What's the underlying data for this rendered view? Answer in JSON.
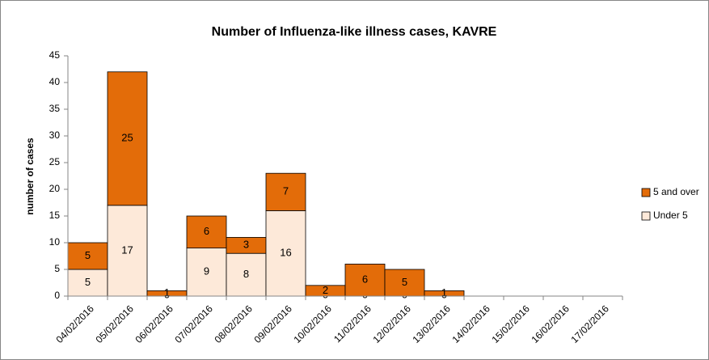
{
  "chart_data": {
    "type": "stacked_bar",
    "title": "Number of Influenza-like illness cases, KAVRE",
    "y_label": "number of cases",
    "categories": [
      "04/02/2016",
      "05/02/2016",
      "06/02/2016",
      "07/02/2016",
      "08/02/2016",
      "09/02/2016",
      "10/02/2016",
      "11/02/2016",
      "12/02/2016",
      "13/02/2016",
      "14/02/2016",
      "15/02/2016",
      "16/02/2016",
      "17/02/2016"
    ],
    "series": [
      {
        "name": "Under 5",
        "color": "#fde9d9",
        "values": [
          5,
          17,
          0,
          9,
          8,
          16,
          0,
          0,
          0,
          0,
          null,
          null,
          null,
          null
        ]
      },
      {
        "name": "5 and over",
        "color": "#e36c09",
        "values": [
          5,
          25,
          1,
          6,
          3,
          7,
          2,
          6,
          5,
          1,
          null,
          null,
          null,
          null
        ]
      }
    ],
    "ylim": [
      0,
      45
    ],
    "yticks": [
      0,
      5,
      10,
      15,
      20,
      25,
      30,
      35,
      40,
      45
    ],
    "legend": "right"
  }
}
